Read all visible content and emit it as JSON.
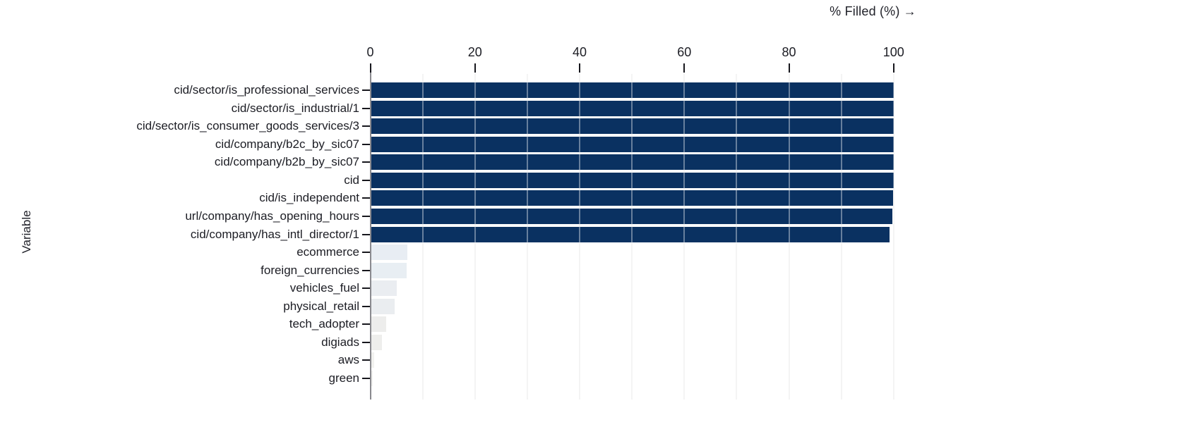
{
  "title": "% Filled (%) →",
  "y_axis_title": "Variable",
  "colors": {
    "bar_dark": "#0a3161",
    "gridline": "#ededed",
    "axis_line": "#8a8a8f",
    "tick": "#17171d",
    "text": "#1c1d24",
    "background": "#ffffff"
  },
  "chart_data": {
    "type": "bar",
    "orientation": "horizontal",
    "title": "% Filled (%) →",
    "xlabel": "% Filled (%)",
    "ylabel": "Variable",
    "xlim": [
      0,
      100
    ],
    "x_ticks": [
      0,
      20,
      40,
      60,
      80,
      100
    ],
    "x_tick_labels": [
      "0",
      "20",
      "40",
      "60",
      "80",
      "100"
    ],
    "gridlines_every": 10,
    "grid": "vertical",
    "legend": "none",
    "categories": [
      "cid/sector/is_professional_services",
      "cid/sector/is_industrial/1",
      "cid/sector/is_consumer_goods_services/3",
      "cid/company/b2c_by_sic07",
      "cid/company/b2b_by_sic07",
      "cid",
      "cid/is_independent",
      "url/company/has_opening_hours",
      "cid/company/has_intl_director/1",
      "ecommerce",
      "foreign_currencies",
      "vehicles_fuel",
      "physical_retail",
      "tech_adopter",
      "digiads",
      "aws",
      "green"
    ],
    "values": [
      100,
      100,
      100,
      100,
      100,
      100,
      99.9,
      99.7,
      99.2,
      7.1,
      6.9,
      5.0,
      4.7,
      3.0,
      2.2,
      0.7,
      0.5
    ],
    "bar_colors": [
      "#0a3161",
      "#0a3161",
      "#0a3161",
      "#0a3161",
      "#0a3161",
      "#0a3161",
      "#0a3161",
      "#0a3161",
      "#0a3161",
      "#e8edf3",
      "#e8eef3",
      "#eaedf1",
      "#eaedf0",
      "#ededec",
      "#eeeeec",
      "#f1f1ef",
      "#f2f2f0"
    ]
  }
}
